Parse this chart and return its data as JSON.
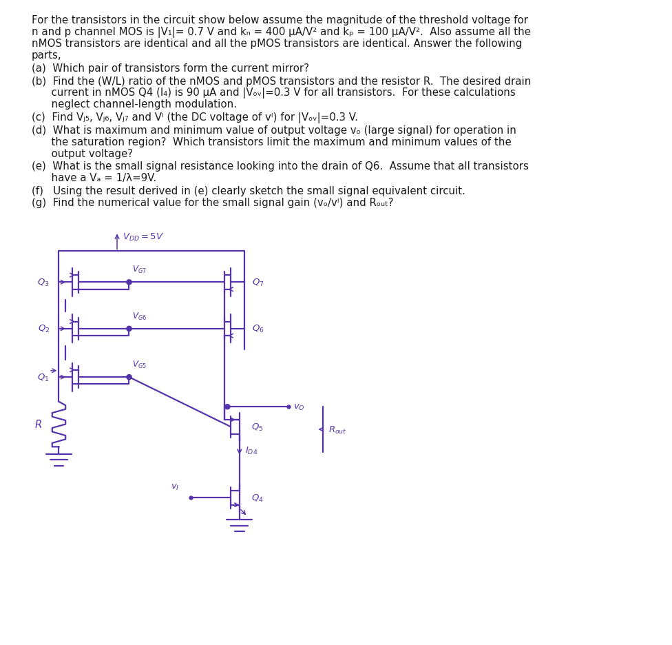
{
  "bg_color": "#ffffff",
  "text_color": "#1a1a1a",
  "circuit_color": "#5533aa",
  "fig_width": 9.76,
  "fig_height": 9.37,
  "line1": "For the transistors in the circuit show below assume the magnitude of the threshold voltage for",
  "line2": "n and p channel MOS is |V₁|= 0.7 V and kₙ = 400 μA/V² and kₚ = 100 μA/V².  Also assume all the",
  "line3": "nMOS transistors are identical and all the pMOS transistors are identical. Answer the following",
  "line4": "parts,",
  "line_a": "(a)  Which pair of transistors form the current mirror?",
  "line_b1": "(b)  Find the (W/L) ratio of the nMOS and pMOS transistors and the resistor R.  The desired drain",
  "line_b2": "      current in nMOS Q4 (I₄) is 90 μA and |Vₒᵥ|=0.3 V for all transistors.  For these calculations",
  "line_b3": "      neglect channel-length modulation.",
  "line_c": "(c)  Find Vⱼ₅, Vⱼ₆, Vⱼ₇ and Vᴵ (the DC voltage of vᴵ) for |Vₒᵥ|=0.3 V.",
  "line_d1": "(d)  What is maximum and minimum value of output voltage vₒ (large signal) for operation in",
  "line_d2": "      the saturation region?  Which transistors limit the maximum and minimum values of the",
  "line_d3": "      output voltage?",
  "line_e1": "(e)  What is the small signal resistance looking into the drain of Q6.  Assume that all transistors",
  "line_e2": "      have a Vₐ = 1/λ=9V.",
  "line_f": "(f)   Using the result derived in (e) clearly sketch the small signal equivalent circuit.",
  "line_g": "(g)  Find the numerical value for the small signal gain (vₒ/vᴵ) and Rₒᵤₜ?"
}
